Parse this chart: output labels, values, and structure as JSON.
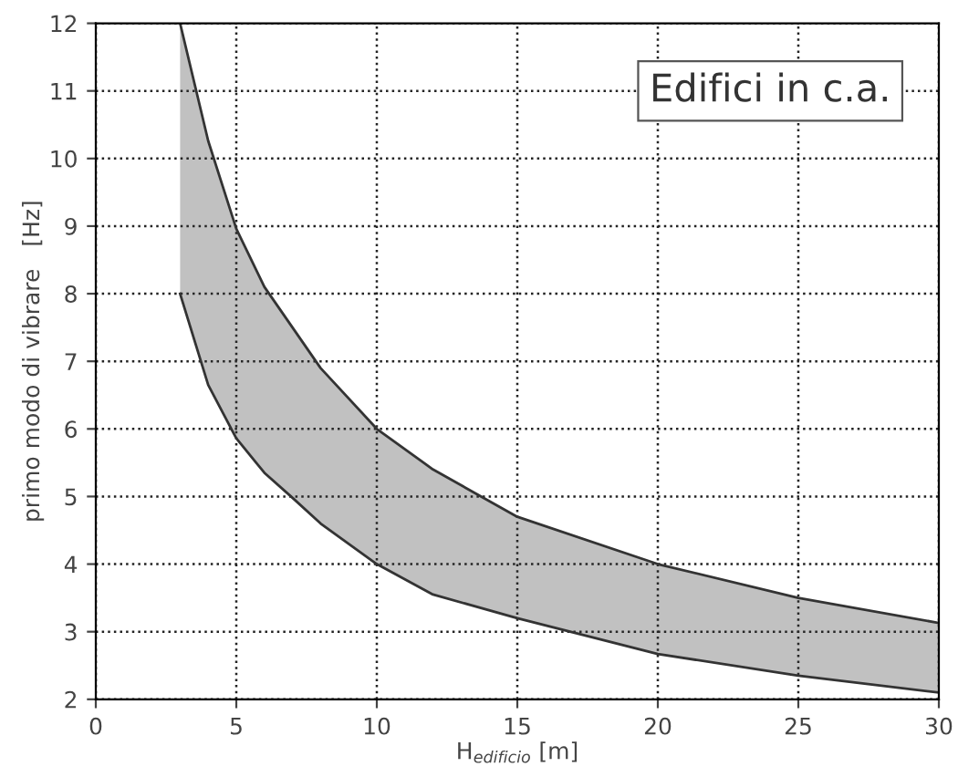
{
  "chart_data": {
    "type": "line",
    "xlabel": "H$_{edificio}$ [m]",
    "ylabel": "primo modo di vibrare   [Hz]",
    "annotations": [
      "Edifici in c.a."
    ],
    "x": [
      3,
      4,
      5,
      6,
      7,
      8,
      10,
      12,
      15,
      20,
      25,
      30
    ],
    "series": [
      {
        "color": "#333333",
        "values": [
          12.0,
          10.26,
          8.96,
          8.1,
          7.5,
          6.9,
          6.0,
          5.4,
          4.7,
          4.0,
          3.5,
          3.13
        ],
        "lower": [
          8.0,
          6.65,
          5.86,
          5.35,
          4.98,
          4.6,
          4.0,
          3.55,
          3.2,
          2.67,
          2.35,
          2.1
        ],
        "upper": [
          12.0,
          10.26,
          8.96,
          8.1,
          7.5,
          6.9,
          6.0,
          5.4,
          4.7,
          4.0,
          3.5,
          3.13
        ]
      },
      {
        "color": "#333333",
        "values": [
          8.0,
          6.65,
          5.86,
          5.35,
          4.98,
          4.6,
          4.0,
          3.55,
          3.2,
          2.67,
          2.35,
          2.1
        ]
      }
    ],
    "xlim": [
      0,
      30
    ],
    "ylim": [
      2,
      12
    ],
    "xticks": [
      0,
      5,
      10,
      15,
      20,
      25,
      30
    ],
    "yticks": [
      2,
      3,
      4,
      5,
      6,
      7,
      8,
      9,
      10,
      11,
      12
    ],
    "grid": true
  }
}
